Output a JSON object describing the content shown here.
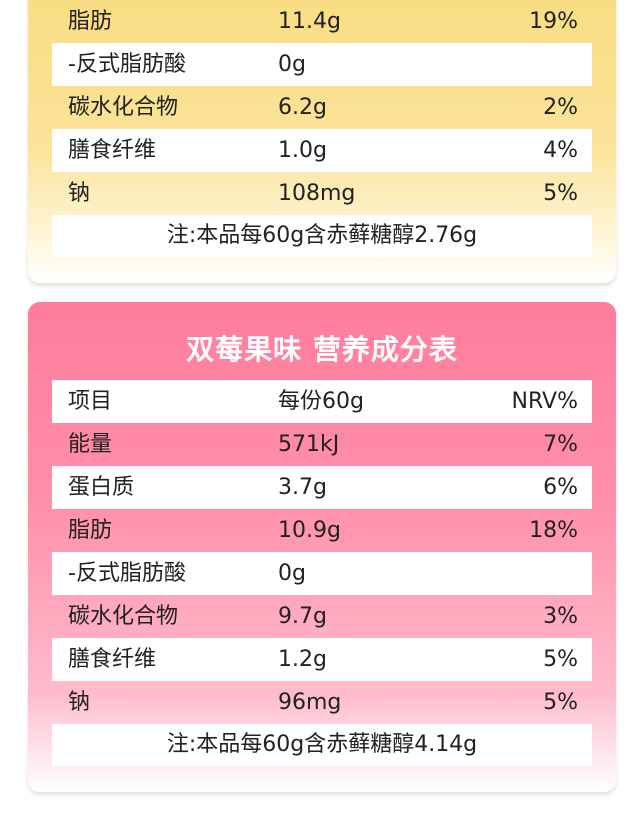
{
  "top_table": {
    "rows": [
      {
        "name": "脂肪",
        "value": "11.4g",
        "nrv": "19%"
      },
      {
        "name": "-反式脂肪酸",
        "value": "0g",
        "nrv": ""
      },
      {
        "name": "碳水化合物",
        "value": "6.2g",
        "nrv": "2%"
      },
      {
        "name": "膳食纤维",
        "value": "1.0g",
        "nrv": "4%"
      },
      {
        "name": "钠",
        "value": "108mg",
        "nrv": "5%"
      }
    ],
    "note": "注:本品每60g含赤藓糖醇2.76g"
  },
  "bottom_table": {
    "title": "双莓果味 营养成分表",
    "header": {
      "name": "项目",
      "value": "每份60g",
      "nrv": "NRV%"
    },
    "rows": [
      {
        "name": "能量",
        "value": "571kJ",
        "nrv": "7%"
      },
      {
        "name": "蛋白质",
        "value": "3.7g",
        "nrv": "6%"
      },
      {
        "name": "脂肪",
        "value": "10.9g",
        "nrv": "18%"
      },
      {
        "name": "-反式脂肪酸",
        "value": "0g",
        "nrv": ""
      },
      {
        "name": "碳水化合物",
        "value": "9.7g",
        "nrv": "3%"
      },
      {
        "name": "膳食纤维",
        "value": "1.2g",
        "nrv": "5%"
      },
      {
        "name": "钠",
        "value": "96mg",
        "nrv": "5%"
      }
    ],
    "note": "注:本品每60g含赤藓糖醇4.14g"
  },
  "colors": {
    "top_card": "#f9dc80",
    "bottom_card": "#ff7d9c",
    "row_white": "#ffffff"
  }
}
